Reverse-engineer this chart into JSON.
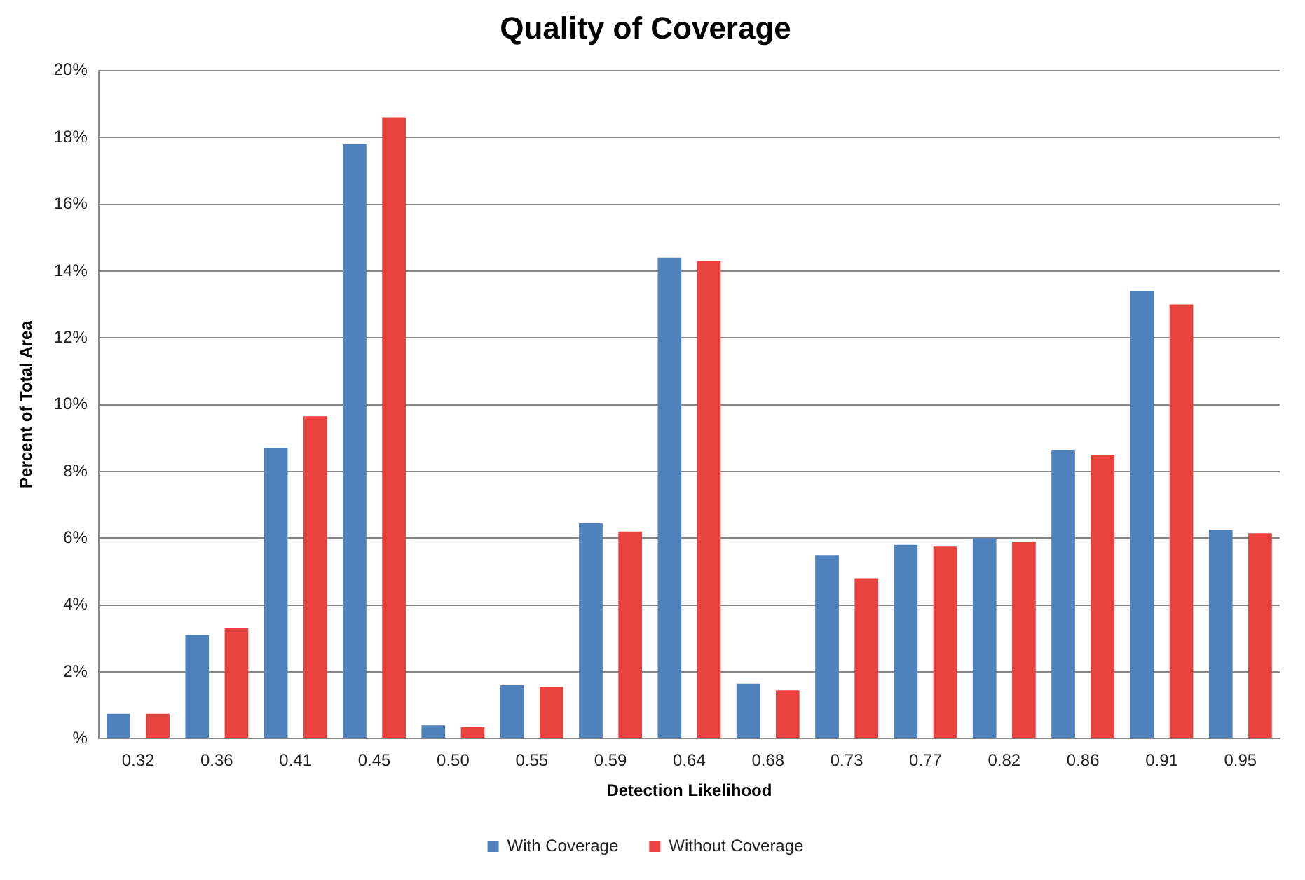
{
  "chart_data": {
    "type": "bar",
    "title": "Quality of Coverage",
    "xlabel": "Detection Likelihood",
    "ylabel": "Percent of Total Area",
    "categories": [
      "0.32",
      "0.36",
      "0.41",
      "0.45",
      "0.50",
      "0.55",
      "0.59",
      "0.64",
      "0.68",
      "0.73",
      "0.77",
      "0.82",
      "0.86",
      "0.91",
      "0.95"
    ],
    "series": [
      {
        "name": "With Coverage",
        "color": "#4f81bd",
        "values": [
          0.75,
          3.1,
          8.7,
          17.8,
          0.4,
          1.6,
          6.45,
          14.4,
          1.65,
          5.5,
          5.8,
          6.0,
          8.65,
          13.4,
          6.25
        ]
      },
      {
        "name": "Without Coverage",
        "color": "#e8423f",
        "values": [
          0.75,
          3.3,
          9.65,
          18.6,
          0.35,
          1.55,
          6.2,
          14.3,
          1.45,
          4.8,
          5.75,
          5.9,
          8.5,
          13.0,
          6.15
        ]
      }
    ],
    "ylim": [
      0,
      20
    ],
    "yticks": [
      {
        "value": 0,
        "label": "%"
      },
      {
        "value": 2,
        "label": "2%"
      },
      {
        "value": 4,
        "label": "4%"
      },
      {
        "value": 6,
        "label": "6%"
      },
      {
        "value": 8,
        "label": "8%"
      },
      {
        "value": 10,
        "label": "10%"
      },
      {
        "value": 12,
        "label": "12%"
      },
      {
        "value": 14,
        "label": "14%"
      },
      {
        "value": 16,
        "label": "16%"
      },
      {
        "value": 18,
        "label": "18%"
      },
      {
        "value": 20,
        "label": "20%"
      }
    ],
    "grid": "y",
    "legend": "bottom"
  }
}
